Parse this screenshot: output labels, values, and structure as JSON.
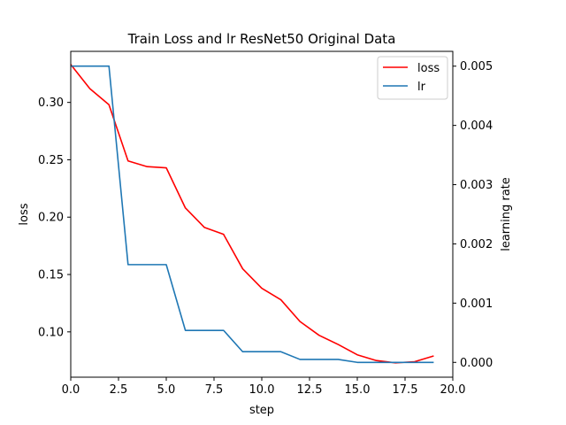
{
  "chart_data": {
    "type": "line",
    "title": "Train Loss and lr ResNet50 Original Data",
    "xlabel": "step",
    "ylabel": "loss",
    "y2label": "learning rate",
    "xlim": [
      0,
      20
    ],
    "ylim": [
      0.0605,
      0.3445
    ],
    "y2lim": [
      -0.00025,
      0.00525
    ],
    "xticks": [
      "0.0",
      "2.5",
      "5.0",
      "7.5",
      "10.0",
      "12.5",
      "15.0",
      "17.5",
      "20.0"
    ],
    "yticks": [
      "0.10",
      "0.15",
      "0.20",
      "0.25",
      "0.30"
    ],
    "y2ticks": [
      "0.000",
      "0.001",
      "0.002",
      "0.003",
      "0.004",
      "0.005"
    ],
    "legend_position": "top-right",
    "grid": false,
    "x": [
      0,
      1,
      2,
      3,
      4,
      5,
      6,
      7,
      8,
      9,
      10,
      11,
      12,
      13,
      14,
      15,
      16,
      17,
      18,
      19
    ],
    "series": [
      {
        "name": "loss",
        "axis": "left",
        "color": "#ff0000",
        "values": [
          0.333,
          0.312,
          0.298,
          0.249,
          0.244,
          0.243,
          0.208,
          0.191,
          0.185,
          0.155,
          0.138,
          0.128,
          0.109,
          0.097,
          0.089,
          0.08,
          0.075,
          0.073,
          0.074,
          0.079
        ]
      },
      {
        "name": "lr",
        "axis": "right",
        "color": "#1f77b4",
        "values": [
          0.005,
          0.005,
          0.005,
          0.00165,
          0.00165,
          0.00165,
          0.00054,
          0.00054,
          0.00054,
          0.00018,
          0.00018,
          0.00018,
          5e-05,
          5e-05,
          5e-05,
          0.0,
          0.0,
          0.0,
          0.0,
          0.0
        ]
      }
    ]
  }
}
